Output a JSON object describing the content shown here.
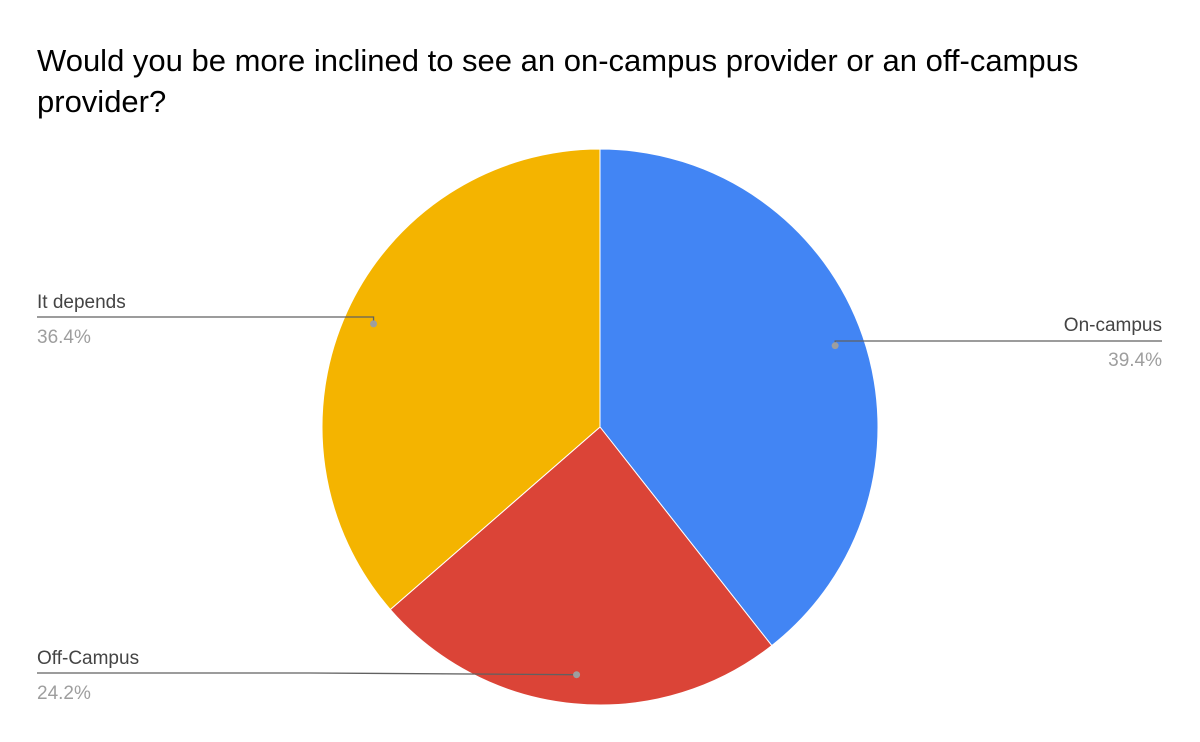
{
  "chart_data": {
    "type": "pie",
    "title": "Would you be more inclined to see an on-campus provider or an off-campus provider?",
    "slices": [
      {
        "label": "On-campus",
        "value": 39.4,
        "percent_label": "39.4%",
        "color": "#4285f4"
      },
      {
        "label": "Off-Campus",
        "value": 24.2,
        "percent_label": "24.2%",
        "color": "#db4437"
      },
      {
        "label": "It depends",
        "value": 36.4,
        "percent_label": "36.4%",
        "color": "#f4b400"
      }
    ],
    "legend": "none",
    "label_style": "callout"
  }
}
